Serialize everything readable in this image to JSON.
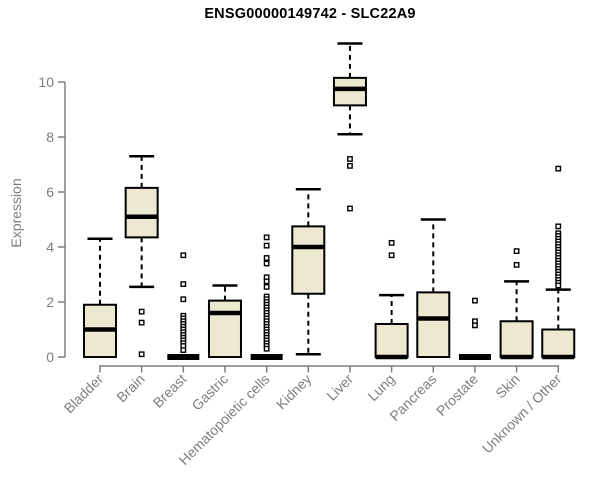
{
  "chart_data": {
    "type": "boxplot",
    "title": "ENSG00000149742 - SLC22A9",
    "ylabel": "Expression",
    "xlabel": "",
    "yticks": [
      0,
      2,
      4,
      6,
      8,
      10
    ],
    "ylim": [
      0,
      11.5
    ],
    "grid": false,
    "legend": false,
    "xticklabel_rotation": 45,
    "colors": {
      "box_fill": "#ede8d0",
      "box_stroke": "#000000",
      "median": "#000000",
      "whisker": "#000000",
      "outlier_fill": "#ffffff",
      "axis": "#7e7e7e",
      "title_text": "#000000"
    },
    "categories": [
      "Bladder",
      "Brain",
      "Breast",
      "Gastric",
      "Hematopoietic cells",
      "Kidney",
      "Liver",
      "Lung",
      "Pancreas",
      "Prostate",
      "Skin",
      "Unknown / Other"
    ],
    "series": [
      {
        "name": "Bladder",
        "whislo": 0,
        "q1": 0,
        "med": 1.0,
        "q3": 1.9,
        "whishi": 4.3,
        "outliers": []
      },
      {
        "name": "Brain",
        "whislo": 2.55,
        "q1": 4.35,
        "med": 5.1,
        "q3": 6.15,
        "whishi": 7.3,
        "outliers": [
          1.65,
          1.25,
          0.1
        ]
      },
      {
        "name": "Breast",
        "whislo": 0,
        "q1": 0,
        "med": 0,
        "q3": 0,
        "whishi": 0,
        "outliers": [
          3.7,
          2.65,
          2.1,
          1.5,
          1.4,
          1.3,
          1.2,
          1.1,
          1.0,
          0.9,
          0.8,
          0.7,
          0.6,
          0.5,
          0.4,
          0.25
        ]
      },
      {
        "name": "Gastric",
        "whislo": 0,
        "q1": 0,
        "med": 1.6,
        "q3": 2.05,
        "whishi": 2.6,
        "outliers": []
      },
      {
        "name": "Hematopoietic cells",
        "whislo": 0,
        "q1": 0,
        "med": 0,
        "q3": 0,
        "whishi": 0,
        "outliers": [
          4.35,
          4.05,
          3.6,
          3.4,
          2.9,
          2.75,
          2.55,
          2.2,
          2.1,
          2.0,
          1.9,
          1.8,
          1.7,
          1.6,
          1.5,
          1.4,
          1.3,
          1.2,
          1.1,
          1.0,
          0.9,
          0.8,
          0.7,
          0.6,
          0.5,
          0.4,
          0.3
        ]
      },
      {
        "name": "Kidney",
        "whislo": 0.1,
        "q1": 2.3,
        "med": 4.0,
        "q3": 4.75,
        "whishi": 6.1,
        "outliers": []
      },
      {
        "name": "Liver",
        "whislo": 8.1,
        "q1": 9.15,
        "med": 9.75,
        "q3": 10.15,
        "whishi": 11.4,
        "outliers": [
          7.2,
          6.95,
          5.4
        ]
      },
      {
        "name": "Lung",
        "whislo": 0,
        "q1": 0,
        "med": 0,
        "q3": 1.2,
        "whishi": 2.25,
        "outliers": [
          4.15,
          3.7
        ]
      },
      {
        "name": "Pancreas",
        "whislo": 0,
        "q1": 0,
        "med": 1.4,
        "q3": 2.35,
        "whishi": 5.0,
        "outliers": []
      },
      {
        "name": "Prostate",
        "whislo": 0,
        "q1": 0,
        "med": 0,
        "q3": 0,
        "whishi": 0,
        "outliers": [
          2.05,
          1.3,
          1.15
        ]
      },
      {
        "name": "Skin",
        "whislo": 0,
        "q1": 0,
        "med": 0,
        "q3": 1.3,
        "whishi": 2.75,
        "outliers": [
          3.85,
          3.35
        ]
      },
      {
        "name": "Unknown / Other",
        "whislo": 0,
        "q1": 0,
        "med": 0,
        "q3": 1.0,
        "whishi": 2.45,
        "outliers": [
          6.85,
          4.75,
          4.5,
          4.4,
          4.3,
          4.2,
          4.1,
          4.0,
          3.9,
          3.8,
          3.7,
          3.6,
          3.5,
          3.4,
          3.3,
          3.2,
          3.1,
          3.0,
          2.9,
          2.8,
          2.7,
          2.6
        ]
      }
    ]
  }
}
